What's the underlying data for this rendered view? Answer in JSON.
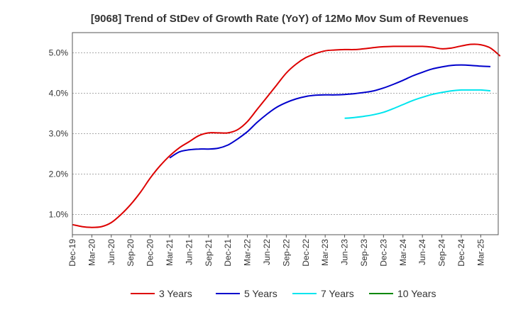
{
  "chart_data": {
    "type": "line",
    "title": "[9068]  Trend of StDev of Growth Rate (YoY) of 12Mo Mov Sum of Revenues",
    "xlabel": "",
    "ylabel": "",
    "ylim": [
      0.5,
      5.5
    ],
    "yticks": [
      1.0,
      2.0,
      3.0,
      4.0,
      5.0
    ],
    "ytick_labels": [
      "1.0%",
      "2.0%",
      "3.0%",
      "4.0%",
      "5.0%"
    ],
    "xtick_labels": [
      "Dec-19",
      "Mar-20",
      "Jun-20",
      "Sep-20",
      "Dec-20",
      "Mar-21",
      "Jun-21",
      "Sep-21",
      "Dec-21",
      "Mar-22",
      "Jun-22",
      "Sep-22",
      "Dec-22",
      "Mar-23",
      "Jun-23",
      "Sep-23",
      "Dec-23",
      "Mar-24",
      "Jun-24",
      "Sep-24",
      "Dec-24",
      "Mar-25"
    ],
    "grid": true,
    "legend_position": "bottom",
    "series": [
      {
        "name": "3 Years",
        "color": "#dd0000",
        "start_index": 0,
        "values": [
          0.75,
          0.7,
          0.68,
          0.7,
          0.8,
          1.0,
          1.25,
          1.55,
          1.9,
          2.2,
          2.45,
          2.65,
          2.8,
          2.95,
          3.02,
          3.02,
          3.02,
          3.1,
          3.3,
          3.6,
          3.9,
          4.2,
          4.5,
          4.72,
          4.88,
          4.98,
          5.05,
          5.07,
          5.08,
          5.08,
          5.1,
          5.13,
          5.15,
          5.16,
          5.16,
          5.16,
          5.16,
          5.14,
          5.1,
          5.12,
          5.17,
          5.21,
          5.2,
          5.12,
          4.92
        ]
      },
      {
        "name": "5 Years",
        "color": "#0000cc",
        "start_index": 10,
        "values": [
          2.4,
          2.55,
          2.6,
          2.62,
          2.62,
          2.64,
          2.72,
          2.87,
          3.05,
          3.28,
          3.48,
          3.65,
          3.77,
          3.86,
          3.92,
          3.95,
          3.96,
          3.96,
          3.97,
          3.99,
          4.02,
          4.06,
          4.13,
          4.22,
          4.32,
          4.43,
          4.52,
          4.6,
          4.65,
          4.69,
          4.7,
          4.69,
          4.67,
          4.66
        ]
      },
      {
        "name": "7 Years",
        "color": "#00e5ee",
        "start_index": 28,
        "values": [
          3.38,
          3.4,
          3.43,
          3.47,
          3.53,
          3.62,
          3.72,
          3.82,
          3.9,
          3.97,
          4.02,
          4.06,
          4.08,
          4.08,
          4.08,
          4.06
        ]
      },
      {
        "name": "10 Years",
        "color": "#008800",
        "start_index": 0,
        "values": []
      }
    ]
  }
}
